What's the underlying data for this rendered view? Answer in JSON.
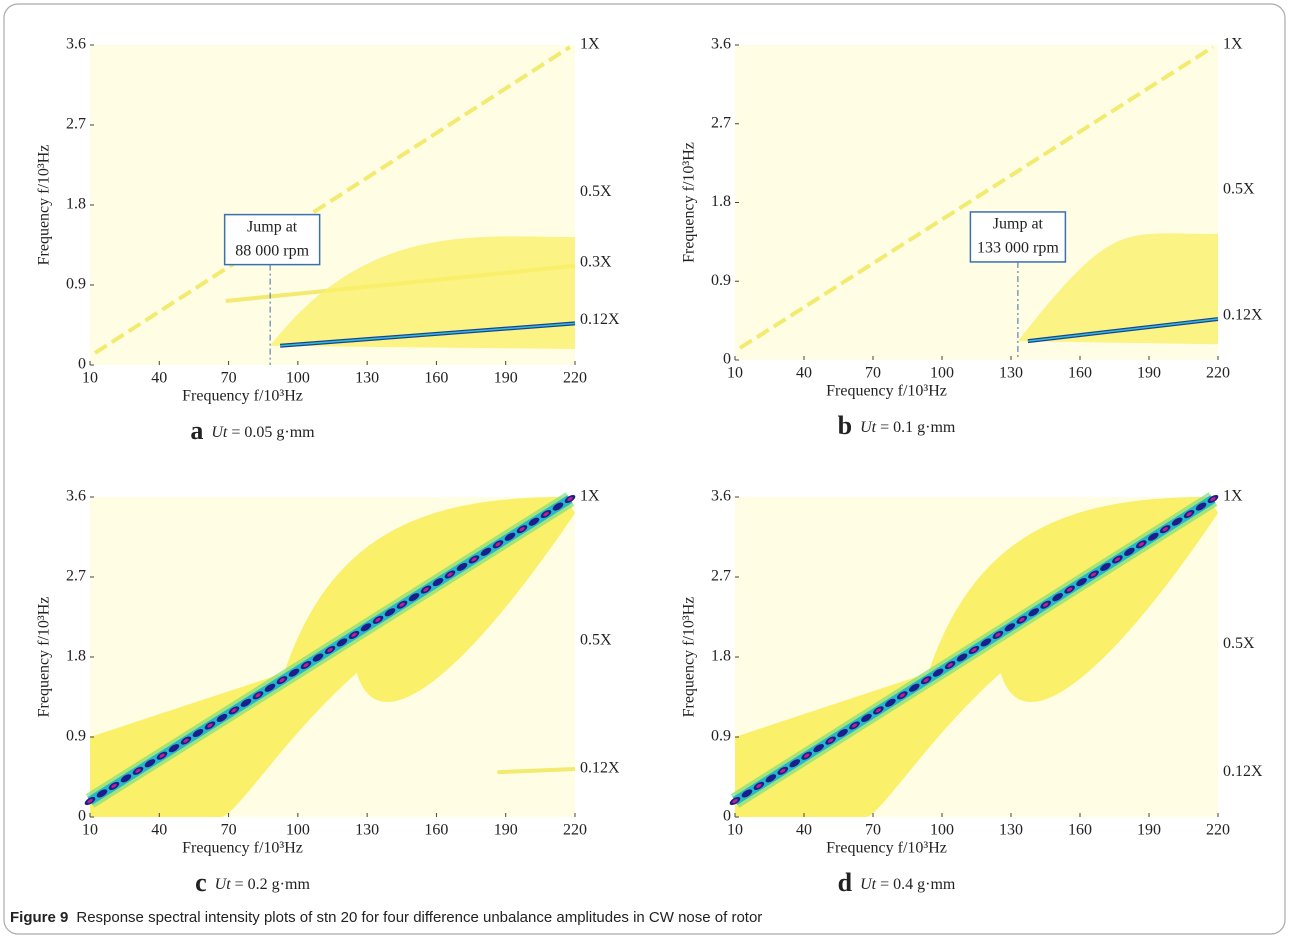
{
  "figure": {
    "caption_label": "Figure 9",
    "caption": "Response spectral intensity plots of stn 20 for four difference unbalance amplitudes in CW nose of rotor",
    "panels": [
      {
        "label": "a",
        "param": "Ut",
        "param_value": "= 0.05 g·mm",
        "xlabel": "Frequency f/10³Hz",
        "ylabel": "Frequency f/10³Hz",
        "xlim": [
          10,
          220
        ],
        "xticks": [
          10,
          40,
          70,
          100,
          130,
          160,
          190,
          220
        ],
        "ylim": [
          0,
          3.6
        ],
        "yticks": [
          0,
          0.9,
          1.8,
          2.7,
          3.6
        ],
        "orders": [
          "1X",
          "0.5X",
          "0.3X",
          "0.12X"
        ],
        "annotation": [
          "Jump at",
          "88 000 rpm"
        ]
      },
      {
        "label": "b",
        "param": "Ut",
        "param_value": "= 0.1 g·mm",
        "xlabel": "Frequency f/10³Hz",
        "ylabel": "Frequency f/10³Hz",
        "xlim": [
          10,
          220
        ],
        "xticks": [
          10,
          40,
          70,
          100,
          130,
          160,
          190,
          220
        ],
        "ylim": [
          0,
          3.6
        ],
        "yticks": [
          0,
          0.9,
          1.8,
          2.7,
          3.6
        ],
        "orders": [
          "1X",
          "0.5X",
          "0.12X"
        ],
        "annotation": [
          "Jump at",
          "133 000 rpm"
        ]
      },
      {
        "label": "c",
        "param": "Ut",
        "param_value": "= 0.2 g·mm",
        "xlabel": "Frequency f/10³Hz",
        "ylabel": "Frequency f/10³Hz",
        "xlim": [
          10,
          220
        ],
        "xticks": [
          10,
          40,
          70,
          100,
          130,
          160,
          190,
          220
        ],
        "ylim": [
          0,
          3.6
        ],
        "yticks": [
          0,
          0.9,
          1.8,
          2.7,
          3.6
        ],
        "orders": [
          "1X",
          "0.5X",
          "0.12X"
        ]
      },
      {
        "label": "d",
        "param": "Ut",
        "param_value": "= 0.4 g·mm",
        "xlabel": "Frequency f/10³Hz",
        "ylabel": "Frequency f/10³Hz",
        "xlim": [
          10,
          220
        ],
        "xticks": [
          10,
          40,
          70,
          100,
          130,
          160,
          190,
          220
        ],
        "ylim": [
          0,
          3.6
        ],
        "yticks": [
          0,
          0.9,
          1.8,
          2.7,
          3.6
        ],
        "orders": [
          "1X",
          "0.5X",
          "0.12X"
        ]
      }
    ]
  }
}
